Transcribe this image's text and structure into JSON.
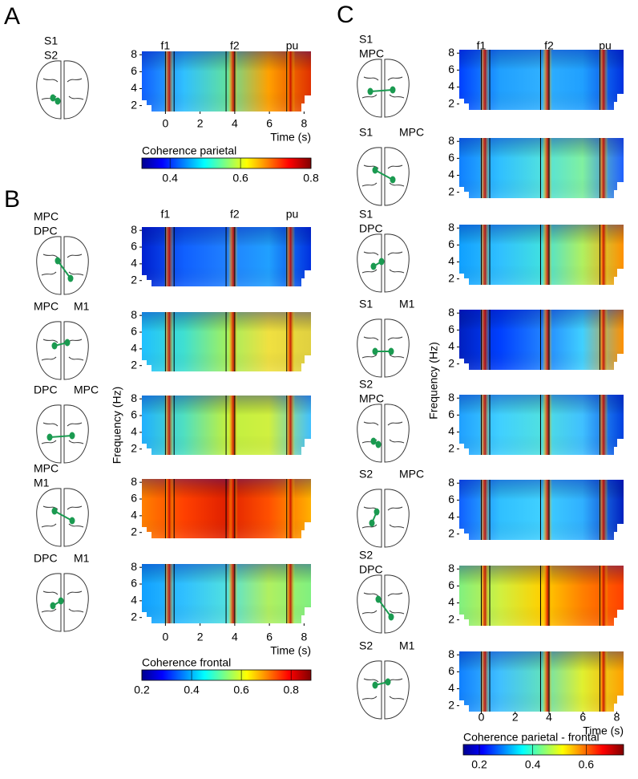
{
  "panels": [
    {
      "letter": "A",
      "event_labels": [
        "f1",
        "f2",
        "pu"
      ],
      "rows": [
        [
          "S1",
          "S2"
        ]
      ],
      "x_ticks": [
        0,
        2,
        4,
        6,
        8
      ],
      "x_label": "Time (s)",
      "y_ticks": [
        2,
        4,
        6,
        8
      ],
      "colorbar": {
        "label": "Coherence parietal",
        "ticks": [
          0.4,
          0.6,
          0.8
        ]
      }
    },
    {
      "letter": "B",
      "event_labels": [
        "f1",
        "f2",
        "pu"
      ],
      "rows": [
        [
          "MPC",
          "DPC"
        ],
        [
          "MPC",
          "M1"
        ],
        [
          "DPC",
          "MPC"
        ],
        [
          "MPC",
          "M1"
        ],
        [
          "DPC",
          "M1"
        ]
      ],
      "x_ticks": [
        0,
        2,
        4,
        6,
        8
      ],
      "x_label": "Time (s)",
      "y_ticks": [
        2,
        4,
        6,
        8
      ],
      "y_label": "Frequency (Hz)",
      "colorbar": {
        "label": "Coherence frontal",
        "ticks": [
          0.2,
          0.4,
          0.6,
          0.8
        ]
      }
    },
    {
      "letter": "C",
      "event_labels": [
        "f1",
        "f2",
        "pu"
      ],
      "rows": [
        [
          "S1",
          "MPC"
        ],
        [
          "S1",
          "MPC"
        ],
        [
          "S1",
          "DPC"
        ],
        [
          "S1",
          "M1"
        ],
        [
          "S2",
          "MPC"
        ],
        [
          "S2",
          "MPC"
        ],
        [
          "S2",
          "DPC"
        ],
        [
          "S2",
          "M1"
        ]
      ],
      "x_ticks": [
        0,
        2,
        4,
        6,
        8
      ],
      "x_label": "Time (s)",
      "y_ticks": [
        2,
        4,
        6,
        8
      ],
      "y_label": "Frequency (Hz)",
      "colorbar": {
        "label": "Coherence parietal - frontal",
        "ticks": [
          0.2,
          0.4,
          0.6
        ]
      }
    }
  ]
}
